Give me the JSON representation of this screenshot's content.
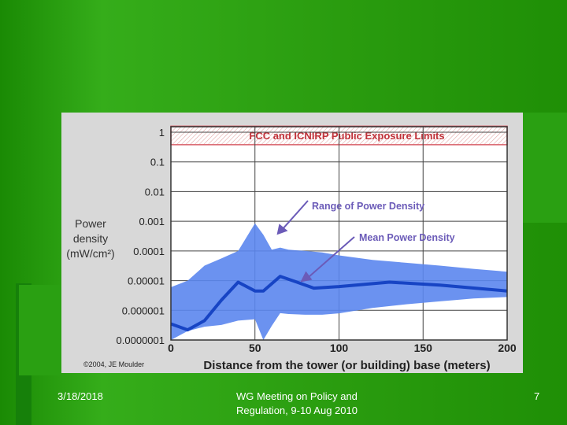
{
  "slide": {
    "date": "3/18/2018",
    "title_line1": "WG Meeting on Policy and",
    "title_line2": "Regulation, 9-10 Aug 2010",
    "page_number": "7",
    "colors": {
      "background": "#1e8f06",
      "band_fill": "#5b86ee",
      "mean_line": "#1744c4",
      "annotation": "#6b5bb8",
      "limit_text": "#c0323a"
    }
  },
  "chart_data": {
    "type": "area",
    "title": "",
    "xlabel": "Distance from the tower (or building) base (meters)",
    "ylabel_lines": [
      "Power",
      "density",
      "(mW/cm²)"
    ],
    "xlim": [
      0,
      200
    ],
    "ylim": [
      1e-07,
      1
    ],
    "yscale": "log",
    "x_ticks": [
      0,
      50,
      100,
      150,
      200
    ],
    "x_tick_labels": [
      "0",
      "50",
      "100",
      "150",
      "200"
    ],
    "y_ticks": [
      1,
      0.1,
      0.01,
      0.001,
      0.0001,
      1e-05,
      1e-06,
      1e-07
    ],
    "y_tick_labels": [
      "1",
      "0.1",
      "0.01",
      "0.001",
      "0.0001",
      "0.00001",
      "0.000001",
      "0.0000001"
    ],
    "grid": true,
    "limit_band": {
      "label": "FCC and ICNIRP Public Exposure Limits",
      "low": 0.38,
      "high": 1.6
    },
    "series": [
      {
        "name": "Range of Power Density",
        "kind": "range",
        "x": [
          0,
          10,
          20,
          30,
          40,
          50,
          55,
          60,
          65,
          70,
          80,
          90,
          100,
          120,
          140,
          160,
          180,
          200
        ],
        "upper": [
          6e-06,
          1e-05,
          3.2e-05,
          5.6e-05,
          0.0001,
          0.00085,
          0.00035,
          0.00011,
          0.00013,
          0.00011,
          0.0001,
          8.9e-05,
          7.1e-05,
          5e-05,
          4e-05,
          3.2e-05,
          2.5e-05,
          2e-05
        ],
        "lower": [
          1e-07,
          2e-07,
          2.8e-07,
          3.2e-07,
          4.5e-07,
          5e-07,
          1e-07,
          3e-07,
          8e-07,
          7.5e-07,
          7.1e-07,
          7.1e-07,
          7.9e-07,
          1.2e-06,
          1.6e-06,
          2e-06,
          2.5e-06,
          2.8e-06
        ]
      },
      {
        "name": "Mean Power Density",
        "kind": "line",
        "x": [
          0,
          10,
          20,
          30,
          40,
          50,
          55,
          65,
          75,
          85,
          100,
          130,
          160,
          200
        ],
        "y": [
          3.5e-07,
          2.2e-07,
          4.5e-07,
          2.2e-06,
          8.9e-06,
          4.5e-06,
          4.5e-06,
          1.4e-05,
          8.9e-06,
          5.6e-06,
          6.3e-06,
          8.9e-06,
          7.1e-06,
          4.5e-06
        ]
      }
    ],
    "annotations": [
      {
        "text": "Range of Power Density",
        "arrow_to_x": 63,
        "arrow_to_y": 0.00035
      },
      {
        "text": "Mean Power Density",
        "arrow_to_x": 77,
        "arrow_to_y": 8.9e-06
      }
    ],
    "credit": "©2004, JE Moulder"
  }
}
